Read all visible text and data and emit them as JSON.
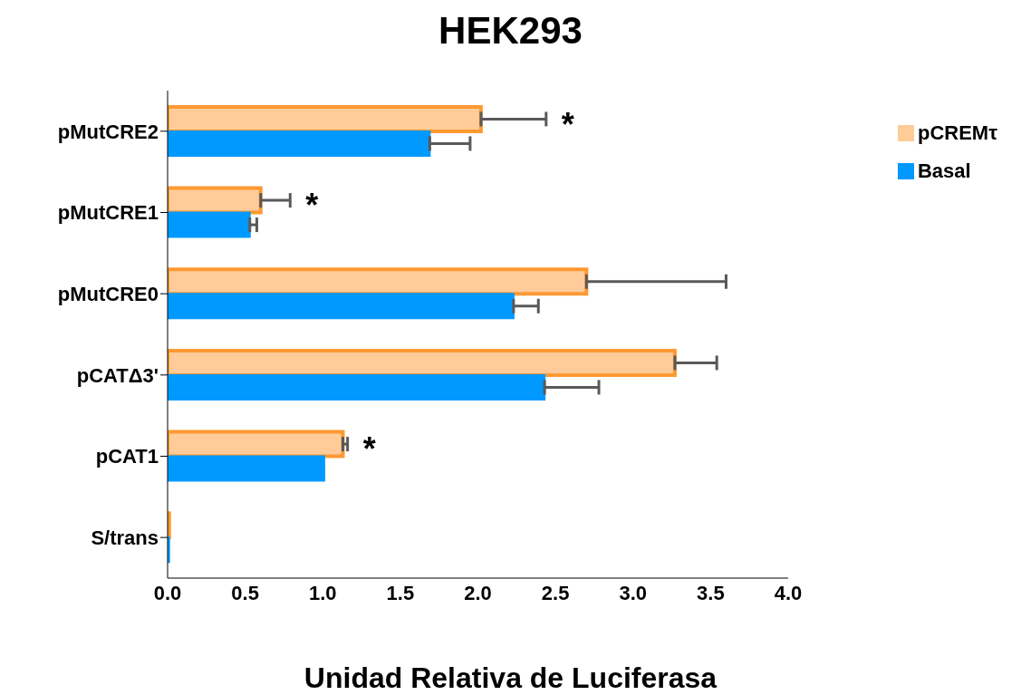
{
  "chart_data": {
    "type": "bar",
    "orientation": "horizontal",
    "title": "HEK293",
    "xlabel": "Unidad Relativa de Luciferasa",
    "categories": [
      "pMutCRE2",
      "pMutCRE1",
      "pMutCRE0",
      "pCATΔ3'",
      "pCAT1",
      "S/trans"
    ],
    "series": [
      {
        "name": "pCREMτ",
        "color": "#ff9933",
        "values": [
          2.02,
          0.6,
          2.7,
          3.27,
          1.13,
          0.01
        ],
        "errors": [
          [
            2.02,
            2.44
          ],
          [
            0.6,
            0.79
          ],
          [
            2.7,
            3.6
          ],
          [
            3.27,
            3.54
          ],
          [
            1.13,
            1.16
          ],
          null
        ]
      },
      {
        "name": "Basal",
        "color": "#0099ff",
        "values": [
          1.69,
          0.53,
          2.23,
          2.43,
          1.01,
          0.01
        ],
        "errors": [
          [
            1.69,
            1.95
          ],
          [
            0.53,
            0.575
          ],
          [
            2.23,
            2.39
          ],
          [
            2.43,
            2.78
          ],
          null,
          null
        ]
      }
    ],
    "xlim": [
      0,
      4
    ],
    "xticks": [
      {
        "value": 0,
        "label": "0.0"
      },
      {
        "value": 0.5,
        "label": "0.5"
      },
      {
        "value": 1,
        "label": "1.0"
      },
      {
        "value": 1.5,
        "label": "1.5"
      },
      {
        "value": 2,
        "label": "2.0"
      },
      {
        "value": 2.5,
        "label": "2.5"
      },
      {
        "value": 3,
        "label": "3.0"
      },
      {
        "value": 3.5,
        "label": "3.5"
      },
      {
        "value": 4,
        "label": "4.0"
      }
    ],
    "annotations": [
      {
        "text": "*",
        "x": 2.02,
        "y": "pMutCRE2"
      },
      {
        "text": "*",
        "x": 0.6,
        "y": "pMutCRE1"
      },
      {
        "text": "*",
        "x": 1.13,
        "y": "pCAT1"
      }
    ],
    "grid": false,
    "legend": "top right"
  }
}
